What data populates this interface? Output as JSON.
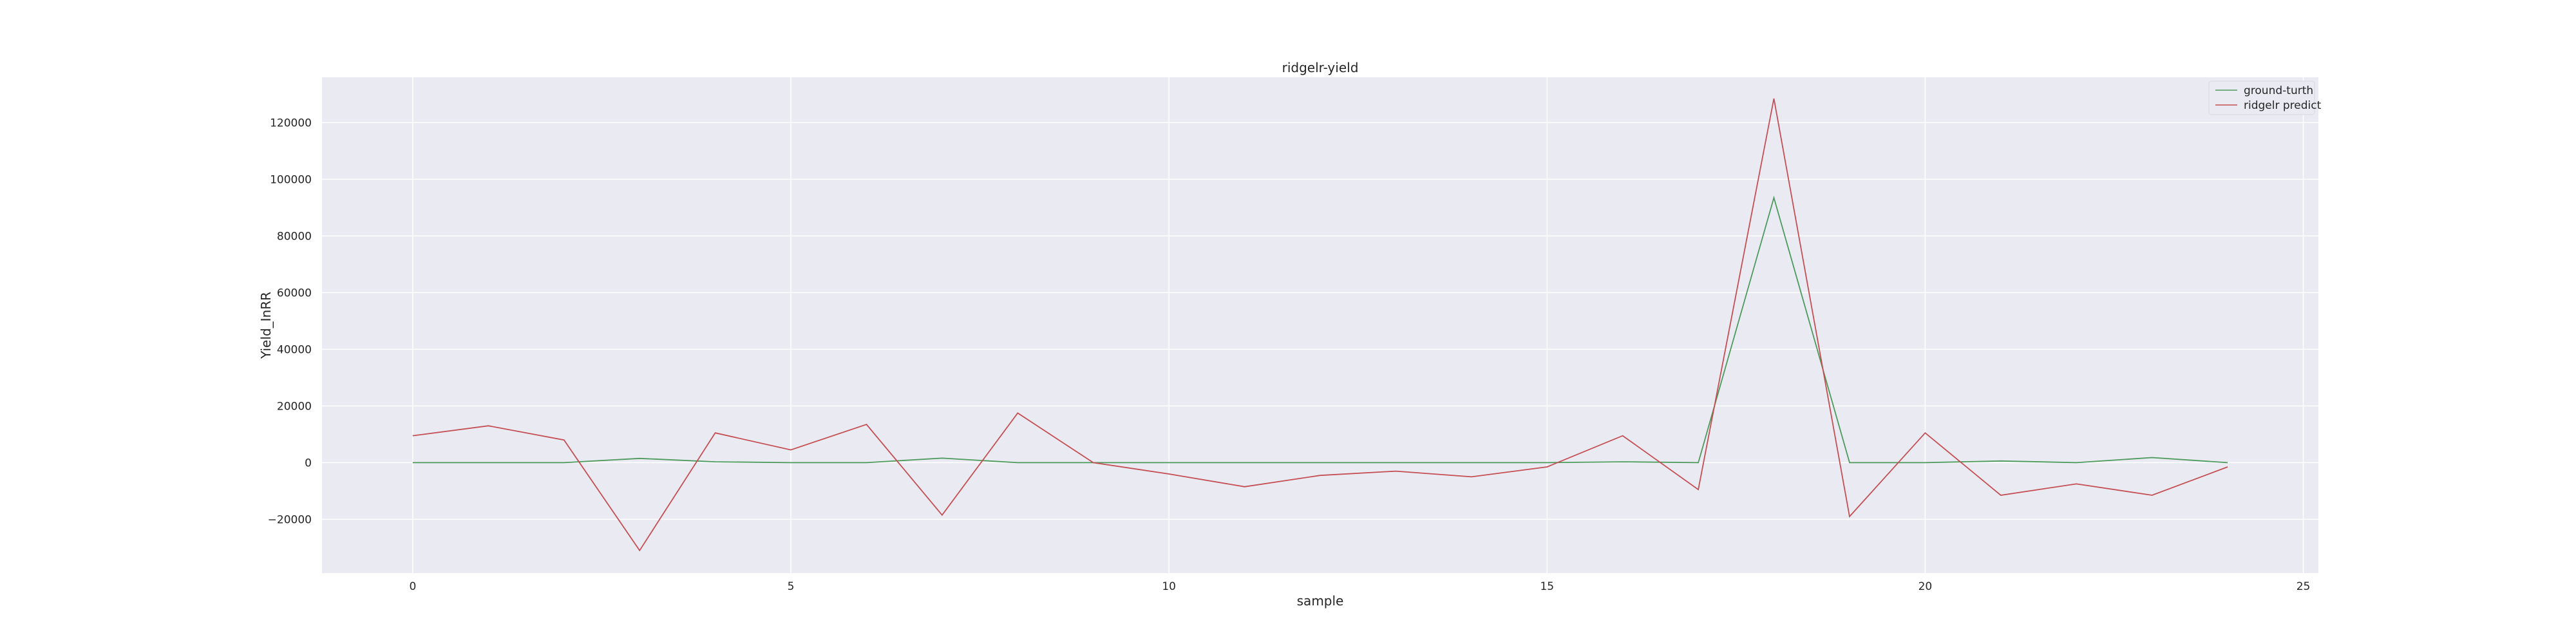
{
  "chart_data": {
    "type": "line",
    "title": "ridgelr-yield",
    "xlabel": "sample",
    "ylabel": "Yield_InRR",
    "xlim": [
      -1.2,
      25.2
    ],
    "ylim": [
      -39000,
      136000
    ],
    "xticks": [
      0,
      5,
      10,
      15,
      20,
      25
    ],
    "yticks": [
      -20000,
      0,
      20000,
      40000,
      60000,
      80000,
      100000,
      120000
    ],
    "xtick_labels": [
      "0",
      "5",
      "10",
      "15",
      "20",
      "25"
    ],
    "ytick_labels": [
      "−20000",
      "0",
      "20000",
      "40000",
      "60000",
      "80000",
      "100000",
      "120000"
    ],
    "grid": true,
    "legend_position": "top-right",
    "x": [
      0,
      1,
      2,
      3,
      4,
      5,
      6,
      7,
      8,
      9,
      10,
      11,
      12,
      13,
      14,
      15,
      16,
      17,
      18,
      19,
      20,
      21,
      22,
      23,
      24
    ],
    "series": [
      {
        "name": "ground-turth",
        "color": "#4c9a5b",
        "values": [
          0,
          0,
          0,
          1500,
          300,
          0,
          0,
          1600,
          0,
          0,
          0,
          0,
          0,
          0,
          0,
          0,
          300,
          0,
          93500,
          0,
          0,
          600,
          0,
          1800,
          0
        ]
      },
      {
        "name": "ridgelr predict",
        "color": "#c44e52",
        "values": [
          9500,
          13000,
          8000,
          -31000,
          10500,
          4500,
          13500,
          -18500,
          17500,
          0,
          -4000,
          -8500,
          -4500,
          -3000,
          -5000,
          -1500,
          9500,
          -9500,
          128500,
          -19000,
          10500,
          -11500,
          -7500,
          -11500,
          -1500
        ]
      }
    ]
  }
}
